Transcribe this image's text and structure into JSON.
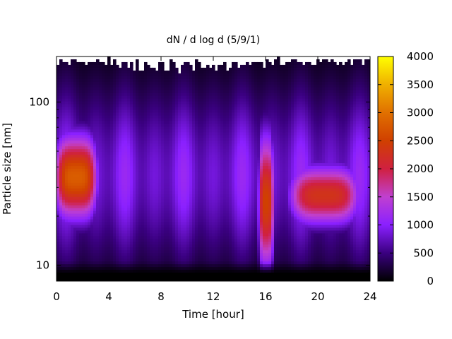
{
  "chart_data": {
    "type": "heatmap",
    "title": "dN / d log d (5/9/1)",
    "xlabel": "Time [hour]",
    "ylabel": "Particle size [nm]",
    "xlim": [
      0,
      24
    ],
    "ylim": [
      8,
      190
    ],
    "y_scale": "log",
    "x_ticks": [
      0,
      4,
      8,
      12,
      16,
      20,
      24
    ],
    "x_tick_labels": [
      "0",
      "4",
      "8",
      "12",
      "16",
      "20",
      "24"
    ],
    "y_ticks": [
      10,
      100
    ],
    "y_tick_labels": [
      "10",
      "100"
    ],
    "colorbar": {
      "range": [
        0,
        4000
      ],
      "ticks": [
        0,
        500,
        1000,
        1500,
        2000,
        2500,
        3000,
        3500,
        4000
      ],
      "tick_labels": [
        "0",
        "500",
        "1000",
        "1500",
        "2000",
        "2500",
        "3000",
        "3500",
        "4000"
      ],
      "colors": [
        "#000000",
        "#3a0080",
        "#8a20ff",
        "#c040d0",
        "#d02040",
        "#d04000",
        "#e07000",
        "#f0b000",
        "#ffff00"
      ]
    },
    "grid": false,
    "legend": "colorbar-right",
    "features": [
      {
        "time_range": [
          0,
          3
        ],
        "size_range": [
          20,
          60
        ],
        "peak_value": 2800
      },
      {
        "time_range": [
          15.5,
          16.6
        ],
        "size_range": [
          10,
          60
        ],
        "peak_value": 2500
      },
      {
        "time_range": [
          18,
          23
        ],
        "size_range": [
          18,
          40
        ],
        "peak_value": 2300
      }
    ]
  }
}
